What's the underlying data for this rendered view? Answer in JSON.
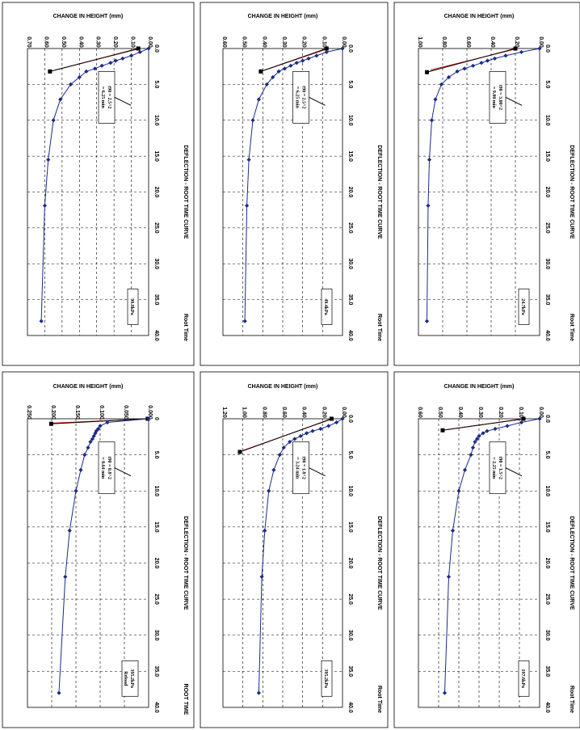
{
  "chart_data": [
    {
      "type": "line",
      "title": "DEFLECTION - ROOT TIME CURVE",
      "xlabel": "Root Time",
      "ylabel": "CHANGE IN HEIGHT (mm)",
      "xlim": [
        0,
        40
      ],
      "ylim": [
        0,
        1.0
      ],
      "y_reversed": true,
      "xticks": [
        "0.0",
        "5.0",
        "10.0",
        "15.0",
        "20.0",
        "25.0",
        "30.0",
        "35.0",
        "40.0"
      ],
      "yticks": [
        "0.00",
        "0.20",
        "0.40",
        "0.60",
        "0.80",
        "1.00"
      ],
      "grid": true,
      "annotation": [
        "t90 = 3.00^2",
        "= 9.00 min"
      ],
      "pressure": "24.7kPa",
      "series": [
        {
          "x": [
            0,
            0.5,
            1.0,
            1.4,
            1.7,
            2.0,
            2.4,
            2.8,
            3.2,
            4.0,
            5.0,
            7.1,
            10.0,
            15.5,
            21.9,
            38.0
          ],
          "y": [
            0,
            0.15,
            0.28,
            0.37,
            0.43,
            0.48,
            0.55,
            0.62,
            0.68,
            0.75,
            0.81,
            0.86,
            0.89,
            0.91,
            0.92,
            0.93
          ]
        }
      ],
      "fit_lines": {
        "red": [
          [
            0,
            0.18
          ],
          [
            3.0,
            0.9
          ]
        ],
        "black": [
          [
            0,
            0.2
          ],
          [
            3.3,
            0.93
          ]
        ]
      }
    },
    {
      "type": "line",
      "title": "DEFLECTION - ROOT TIME CURVE",
      "xlabel": "Root Time",
      "ylabel": "CHANGE IN HEIGHT (mm)",
      "xlim": [
        0,
        40
      ],
      "ylim": [
        0,
        0.6
      ],
      "y_reversed": true,
      "xticks": [
        "0.0",
        "5.0",
        "10.0",
        "15.0",
        "20.0",
        "25.0",
        "30.0",
        "35.0",
        "40.0"
      ],
      "yticks": [
        "0.00",
        "0.10",
        "0.20",
        "0.30",
        "0.40",
        "0.50",
        "0.60"
      ],
      "grid": true,
      "annotation": [
        "t90 = 2.5^2",
        "= 6.25 min"
      ],
      "pressure": "49.4kPa",
      "series": [
        {
          "x": [
            0,
            0.5,
            1.0,
            1.4,
            1.7,
            2.0,
            2.4,
            2.8,
            3.2,
            4.0,
            5.0,
            7.1,
            10.0,
            15.5,
            21.9,
            38.0
          ],
          "y": [
            0,
            0.08,
            0.13,
            0.17,
            0.2,
            0.23,
            0.26,
            0.29,
            0.32,
            0.35,
            0.38,
            0.42,
            0.45,
            0.47,
            0.48,
            0.49
          ]
        }
      ],
      "fit_lines": {
        "red": [
          [
            0,
            0.07
          ],
          [
            3.0,
            0.39
          ]
        ],
        "black": [
          [
            0,
            0.08
          ],
          [
            3.2,
            0.41
          ]
        ]
      }
    },
    {
      "type": "line",
      "title": "DEFLECTION - ROOT TIME CURVE",
      "xlabel": "Root Time",
      "ylabel": "CHANGE IN HEIGHT (mm)",
      "xlim": [
        0,
        40
      ],
      "ylim": [
        0,
        0.7
      ],
      "y_reversed": true,
      "xticks": [
        "0.0",
        "5.0",
        "10.0",
        "15.0",
        "20.0",
        "25.0",
        "30.0",
        "35.0",
        "40.0"
      ],
      "yticks": [
        "0.00",
        "0.10",
        "0.20",
        "0.30",
        "0.40",
        "0.50",
        "0.60",
        "0.70"
      ],
      "grid": true,
      "annotation": [
        "t90 = 2.5^2",
        "= 6.25 min"
      ],
      "pressure": "98.8kPa",
      "series": [
        {
          "x": [
            0,
            0.5,
            1.0,
            1.4,
            1.7,
            2.0,
            2.4,
            2.8,
            3.2,
            4.0,
            5.0,
            7.1,
            10.0,
            15.5,
            21.9,
            38.0
          ],
          "y": [
            0,
            0.05,
            0.1,
            0.15,
            0.19,
            0.22,
            0.27,
            0.31,
            0.36,
            0.4,
            0.45,
            0.51,
            0.55,
            0.58,
            0.6,
            0.62
          ]
        }
      ],
      "fit_lines": {
        "red": [
          [
            0,
            0.05
          ],
          [
            3.0,
            0.54
          ]
        ],
        "black": [
          [
            0,
            0.06
          ],
          [
            3.2,
            0.57
          ]
        ]
      }
    },
    {
      "type": "line",
      "title": "DEFLECTION - ROOT TIME CURVE",
      "xlabel": "Root Time",
      "ylabel": "CHANGE IN HEIGHT (mm)",
      "xlim": [
        0,
        40
      ],
      "ylim": [
        0,
        0.6
      ],
      "y_reversed": true,
      "xticks": [
        "0.0",
        "5.0",
        "10.0",
        "15.0",
        "20.0",
        "25.0",
        "30.0",
        "35.0",
        "40.0"
      ],
      "yticks": [
        "0.00",
        "0.10",
        "0.20",
        "0.30",
        "0.40",
        "0.50",
        "0.60"
      ],
      "grid": true,
      "annotation": [
        "t90 = 1.5^2",
        "= 2.25 min"
      ],
      "pressure": "197.6kPa",
      "series": [
        {
          "x": [
            0,
            0.5,
            1.0,
            1.4,
            1.7,
            2.0,
            2.4,
            2.8,
            3.2,
            4.0,
            5.0,
            7.1,
            10.0,
            15.5,
            21.9,
            38.0
          ],
          "y": [
            0,
            0.09,
            0.16,
            0.22,
            0.26,
            0.28,
            0.3,
            0.31,
            0.32,
            0.33,
            0.34,
            0.37,
            0.4,
            0.43,
            0.45,
            0.47
          ]
        }
      ],
      "fit_lines": {
        "red": [
          [
            0,
            0.07
          ],
          [
            1.5,
            0.46
          ]
        ],
        "black": [
          [
            0,
            0.08
          ],
          [
            1.6,
            0.48
          ]
        ]
      }
    },
    {
      "type": "line",
      "title": "DEFLECTION - ROOT TIME CURVE",
      "xlabel": "Root Time",
      "ylabel": "CHANGE IN HEIGHT (mm)",
      "xlim": [
        0,
        40
      ],
      "ylim": [
        0,
        1.2
      ],
      "y_reversed": true,
      "xticks": [
        "0.0",
        "5.0",
        "10.0",
        "15.0",
        "20.0",
        "25.0",
        "30.0",
        "35.0",
        "40.0"
      ],
      "yticks": [
        "0.00",
        "0.20",
        "0.40",
        "0.60",
        "0.80",
        "1.00",
        "1.20"
      ],
      "grid": true,
      "annotation": [
        "t90 = 1.8^2",
        "= 3.24 min"
      ],
      "pressure": "395.2kPa",
      "series": [
        {
          "x": [
            0,
            0.5,
            1.0,
            1.4,
            1.7,
            2.0,
            2.4,
            2.8,
            3.2,
            4.0,
            5.0,
            7.1,
            10.0,
            15.5,
            21.9,
            38.0
          ],
          "y": [
            0,
            0.06,
            0.14,
            0.22,
            0.3,
            0.36,
            0.42,
            0.48,
            0.53,
            0.59,
            0.63,
            0.69,
            0.74,
            0.78,
            0.81,
            0.84
          ]
        }
      ],
      "fit_lines": {
        "red": [
          [
            0,
            0.1
          ],
          [
            4.4,
            1.0
          ]
        ],
        "black": [
          [
            0,
            0.11
          ],
          [
            4.6,
            1.03
          ]
        ]
      }
    },
    {
      "type": "line",
      "title": "DEFLECTION - ROOT TIME CURVE",
      "xlabel": "ROOT TIME",
      "ylabel": "CHANGE IN HEIGHT (mm)",
      "xlim": [
        0,
        40
      ],
      "ylim": [
        0,
        0.25
      ],
      "y_reversed": true,
      "xticks": [
        "0",
        "5.0",
        "10.0",
        "15.0",
        "20.0",
        "25.0",
        "30.0",
        "35.0",
        "40.0"
      ],
      "yticks": [
        "0.000",
        "0.050",
        "0.100",
        "0.150",
        "0.200",
        "0.250"
      ],
      "grid": true,
      "annotation": [
        "t90 = 0.8^2",
        "= 0.64 min"
      ],
      "pressure": "395.2kPa Reload",
      "series": [
        {
          "x": [
            0,
            0.5,
            1.0,
            1.4,
            1.7,
            2.0,
            2.4,
            2.8,
            3.2,
            4.0,
            5.0,
            7.1,
            10.0,
            15.5,
            21.9,
            38.0
          ],
          "y": [
            0,
            0.085,
            0.1,
            0.104,
            0.108,
            0.11,
            0.113,
            0.116,
            0.12,
            0.125,
            0.132,
            0.14,
            0.15,
            0.163,
            0.172,
            0.185
          ]
        }
      ],
      "fit_lines": {
        "red": [
          [
            0,
            0.0
          ],
          [
            0.6,
            0.198
          ]
        ],
        "black": [
          [
            0,
            0.002
          ],
          [
            0.7,
            0.201
          ]
        ]
      }
    }
  ]
}
